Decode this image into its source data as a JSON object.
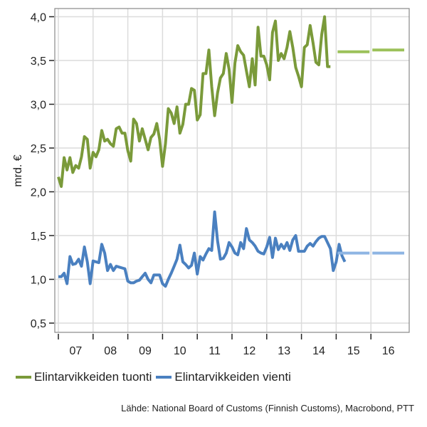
{
  "chart_data": {
    "type": "line",
    "ylabel": "mrd. €",
    "xlabel": "",
    "ylim": [
      0.5,
      4.0
    ],
    "xlim": [
      2006.9,
      2016.9
    ],
    "yticks": [
      0.5,
      1.0,
      1.5,
      2.0,
      2.5,
      3.0,
      3.5,
      4.0
    ],
    "ytick_labels": [
      "0,5",
      "1,0",
      "1,5",
      "2,0",
      "2,5",
      "3,0",
      "3,5",
      "4,0"
    ],
    "xtick_labels": [
      "07",
      "08",
      "09",
      "10",
      "11",
      "12",
      "13",
      "14",
      "15",
      "16"
    ],
    "grid": true,
    "legend_position": "bottom",
    "series": [
      {
        "name": "Elintarvikkeiden tuonti",
        "color": "#7a9a3a",
        "x_start": 2007.0,
        "x_step_months": 1,
        "values": [
          2.17,
          2.06,
          2.39,
          2.25,
          2.39,
          2.22,
          2.3,
          2.27,
          2.4,
          2.63,
          2.6,
          2.27,
          2.45,
          2.4,
          2.48,
          2.7,
          2.58,
          2.6,
          2.55,
          2.52,
          2.72,
          2.74,
          2.67,
          2.67,
          2.47,
          2.35,
          2.83,
          2.78,
          2.58,
          2.72,
          2.6,
          2.48,
          2.62,
          2.66,
          2.78,
          2.6,
          2.29,
          2.55,
          2.95,
          2.9,
          2.78,
          2.97,
          2.67,
          2.77,
          3.0,
          3.0,
          3.18,
          3.16,
          2.82,
          2.88,
          3.35,
          3.35,
          3.62,
          3.2,
          2.87,
          3.13,
          3.3,
          3.35,
          3.58,
          3.4,
          3.02,
          3.47,
          3.67,
          3.6,
          3.56,
          3.38,
          3.2,
          3.52,
          3.22,
          3.88,
          3.55,
          3.55,
          3.45,
          3.28,
          3.82,
          3.95,
          3.5,
          3.58,
          3.52,
          3.65,
          3.83,
          3.65,
          3.42,
          3.32,
          3.2,
          3.65,
          3.68,
          3.9,
          3.7,
          3.48,
          3.45,
          3.8,
          4.0,
          3.43,
          3.43
        ],
        "forecast": [
          {
            "year": "2015",
            "value": 3.6
          },
          {
            "year": "2016",
            "value": 3.62
          }
        ]
      },
      {
        "name": "Elintarvikkeiden vienti",
        "color": "#4a80c0",
        "x_start": 2007.0,
        "x_step_months": 1,
        "values": [
          1.03,
          1.03,
          1.07,
          0.95,
          1.26,
          1.17,
          1.18,
          1.23,
          1.15,
          1.37,
          1.2,
          0.95,
          1.21,
          1.2,
          1.19,
          1.4,
          1.3,
          1.1,
          1.17,
          1.1,
          1.15,
          1.14,
          1.13,
          1.12,
          0.98,
          0.96,
          0.96,
          0.98,
          0.99,
          1.03,
          1.07,
          1.0,
          0.96,
          1.05,
          1.05,
          1.05,
          0.95,
          0.92,
          1.0,
          1.07,
          1.15,
          1.23,
          1.39,
          1.2,
          1.17,
          1.13,
          1.16,
          1.3,
          1.06,
          1.26,
          1.22,
          1.29,
          1.35,
          1.33,
          1.77,
          1.44,
          1.23,
          1.24,
          1.3,
          1.42,
          1.37,
          1.3,
          1.28,
          1.42,
          1.35,
          1.58,
          1.45,
          1.42,
          1.38,
          1.32,
          1.3,
          1.29,
          1.37,
          1.48,
          1.25,
          1.47,
          1.34,
          1.4,
          1.35,
          1.42,
          1.33,
          1.45,
          1.5,
          1.32,
          1.32,
          1.32,
          1.38,
          1.41,
          1.38,
          1.43,
          1.47,
          1.49,
          1.49,
          1.42,
          1.35,
          1.1,
          1.2,
          1.4,
          1.27,
          1.2
        ],
        "forecast": [
          {
            "year": "2015",
            "value": 1.3
          },
          {
            "year": "2016",
            "value": 1.3
          }
        ]
      }
    ],
    "source": "Lähde: National Board of Customs (Finnish Customs), Macrobond, PTT"
  }
}
